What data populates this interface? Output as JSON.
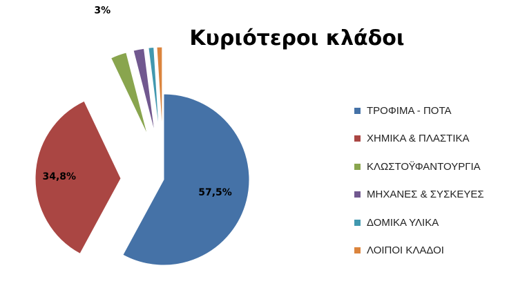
{
  "chart_data": {
    "type": "pie",
    "title": "Κυριότεροι κλάδοι",
    "slices": [
      {
        "name": "ΤΡΟΦΙΜΑ - ΠΟΤΑ",
        "value": 57.5,
        "label": "57,5%",
        "color": "#4572a7"
      },
      {
        "name": "ΧΗΜΙΚΑ & ΠΛΑΣΤΙΚΑ",
        "value": 34.8,
        "label": "34,8%",
        "color": "#aa4643"
      },
      {
        "name": "ΚΛΩΣΤΟΫΦΑΝΤΟΥΡΓΙΑ",
        "value": 3,
        "label": "3%",
        "color": "#89a54e"
      },
      {
        "name": "ΜΗΧΑΝΕΣ & ΣΥΣΚΕΥΕΣ",
        "value": 2,
        "label": "2%",
        "color": "#71588f"
      },
      {
        "name": "ΔΟΜΙΚΑ ΥΛΙΚΑ",
        "value": 1,
        "label": "1%",
        "color": "#4198af"
      },
      {
        "name": "ΛΟΙΠΟΙ ΚΛΑΔΟΙ",
        "value": 1,
        "label": "1%",
        "color": "#db843d"
      }
    ],
    "legend_position": "right",
    "exploded": true
  }
}
